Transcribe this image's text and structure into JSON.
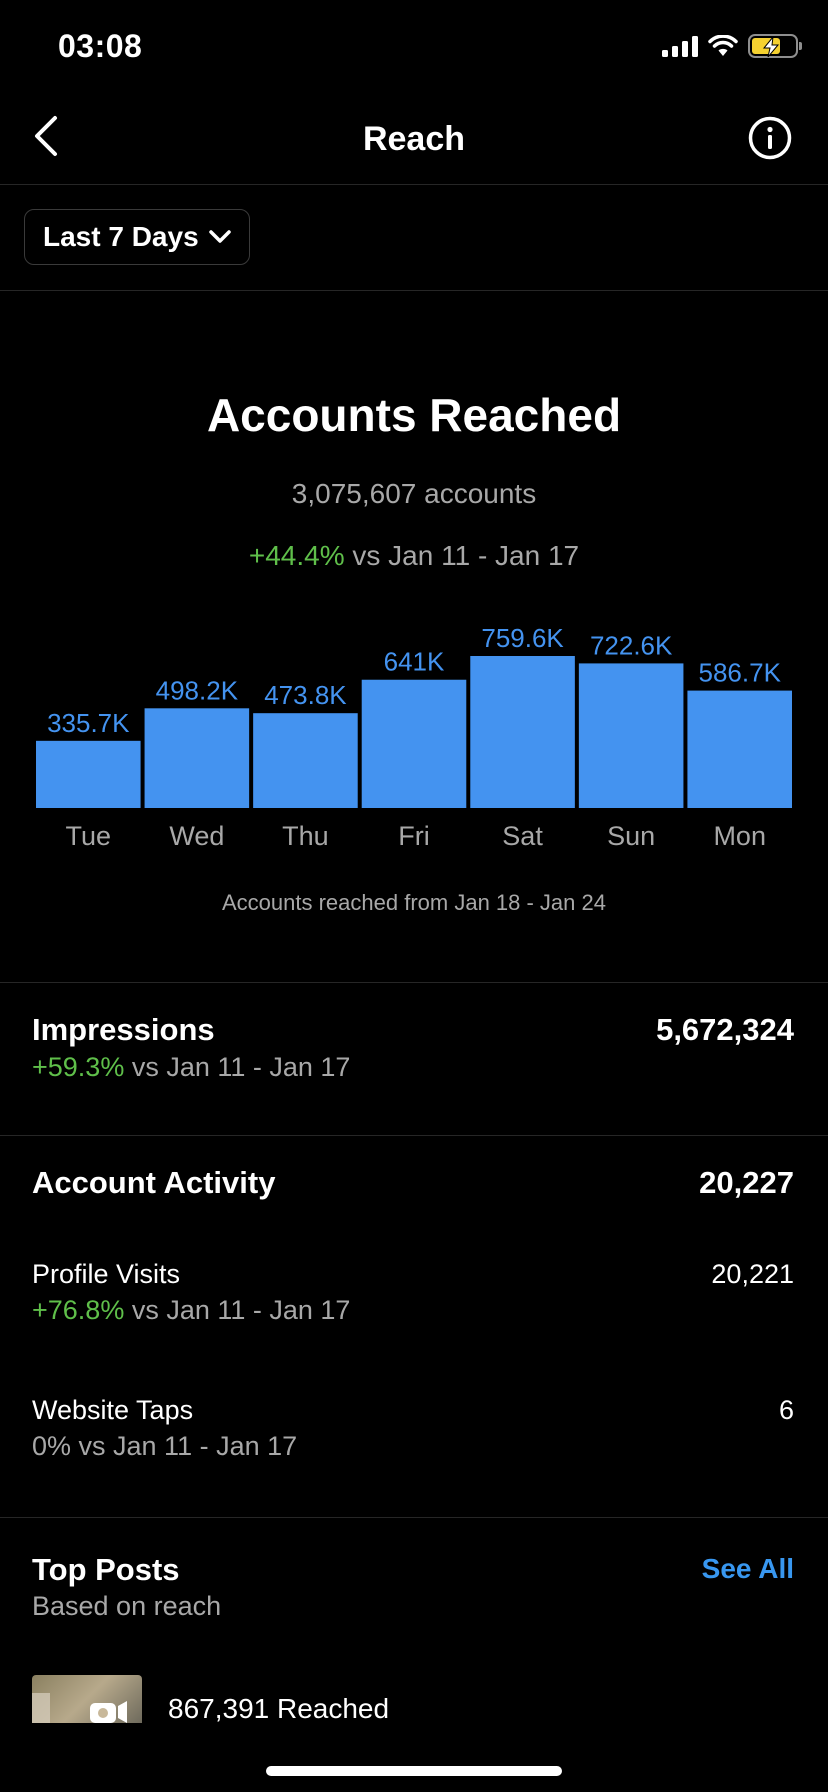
{
  "status": {
    "time": "03:08"
  },
  "nav": {
    "title": "Reach"
  },
  "filter": {
    "label": "Last 7 Days"
  },
  "summary": {
    "title": "Accounts Reached",
    "total": "3,075,607 accounts",
    "change": "+44.4%",
    "compare": " vs Jan 11 - Jan 17"
  },
  "chart_data": {
    "type": "bar",
    "categories": [
      "Tue",
      "Wed",
      "Thu",
      "Fri",
      "Sat",
      "Sun",
      "Mon"
    ],
    "values": [
      335.7,
      498.2,
      473.8,
      641,
      759.6,
      722.6,
      586.7
    ],
    "value_labels": [
      "335.7K",
      "498.2K",
      "473.8K",
      "641K",
      "759.6K",
      "722.6K",
      "586.7K"
    ],
    "caption": "Accounts reached from Jan 18 - Jan 24",
    "bar_color": "#4493f0",
    "label_color": "#4493f0"
  },
  "impressions": {
    "label": "Impressions",
    "value": "5,672,324",
    "change": "+59.3%",
    "compare": " vs Jan 11 - Jan 17"
  },
  "activity": {
    "label": "Account Activity",
    "value": "20,227",
    "profile_visits": {
      "label": "Profile Visits",
      "value": "20,221",
      "change": "+76.8%",
      "compare": " vs Jan 11 - Jan 17"
    },
    "website_taps": {
      "label": "Website Taps",
      "value": "6",
      "change_text": "0% vs Jan 11 - Jan 17"
    }
  },
  "top_posts": {
    "title": "Top Posts",
    "subtitle": "Based on reach",
    "see_all": "See All",
    "first": {
      "reached": "867,391 Reached"
    }
  },
  "colors": {
    "accent": "#3897f0",
    "positive": "#5fbf4a",
    "muted": "#a8a8a8"
  }
}
